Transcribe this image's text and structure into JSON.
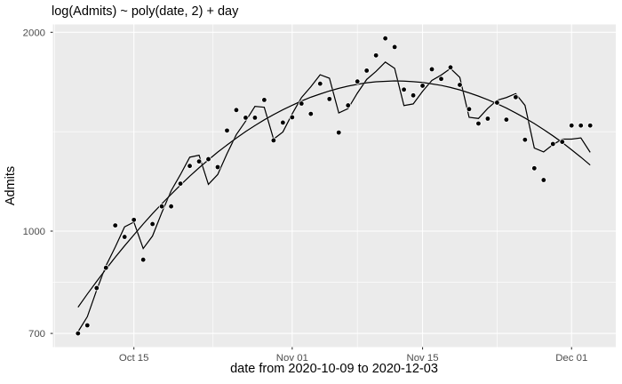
{
  "chart": {
    "title": "log(Admits) ~ poly(date, 2) + day",
    "xlabel": "date from 2020-10-09 to 2020-12-03",
    "ylabel": "Admits"
  },
  "chart_data": {
    "type": "scatter",
    "title": "log(Admits) ~ poly(date, 2) + day",
    "xlabel": "date from 2020-10-09 to 2020-12-03",
    "ylabel": "Admits",
    "x_dates": [
      "2020-10-09",
      "2020-10-10",
      "2020-10-11",
      "2020-10-12",
      "2020-10-13",
      "2020-10-14",
      "2020-10-15",
      "2020-10-16",
      "2020-10-17",
      "2020-10-18",
      "2020-10-19",
      "2020-10-20",
      "2020-10-21",
      "2020-10-22",
      "2020-10-23",
      "2020-10-24",
      "2020-10-25",
      "2020-10-26",
      "2020-10-27",
      "2020-10-28",
      "2020-10-29",
      "2020-10-30",
      "2020-10-31",
      "2020-11-01",
      "2020-11-02",
      "2020-11-03",
      "2020-11-04",
      "2020-11-05",
      "2020-11-06",
      "2020-11-07",
      "2020-11-08",
      "2020-11-09",
      "2020-11-10",
      "2020-11-11",
      "2020-11-12",
      "2020-11-13",
      "2020-11-14",
      "2020-11-15",
      "2020-11-16",
      "2020-11-17",
      "2020-11-18",
      "2020-11-19",
      "2020-11-20",
      "2020-11-21",
      "2020-11-22",
      "2020-11-23",
      "2020-11-24",
      "2020-11-25",
      "2020-11-26",
      "2020-11-27",
      "2020-11-28",
      "2020-11-29",
      "2020-11-30",
      "2020-12-01",
      "2020-12-02",
      "2020-12-03"
    ],
    "series": [
      {
        "name": "observed-admits",
        "geom": "point",
        "values": [
          700,
          720,
          820,
          880,
          1020,
          980,
          1040,
          905,
          1025,
          1090,
          1090,
          1180,
          1255,
          1275,
          1285,
          1250,
          1420,
          1525,
          1485,
          1485,
          1580,
          1372,
          1460,
          1487,
          1560,
          1505,
          1672,
          1585,
          1410,
          1550,
          1685,
          1750,
          1845,
          1958,
          1900,
          1638,
          1605,
          1660,
          1758,
          1700,
          1770,
          1665,
          1530,
          1455,
          1480,
          1565,
          1475,
          1595,
          1375,
          1245,
          1195,
          1355,
          1365,
          1445,
          1445,
          1445
        ]
      },
      {
        "name": "model-fit-poly-date-2-plus-day",
        "geom": "line",
        "values": [
          704,
          742,
          814,
          886,
          946,
          1015,
          1032,
          941,
          983,
          1067,
          1151,
          1218,
          1294,
          1303,
          1177,
          1218,
          1310,
          1400,
          1467,
          1545,
          1540,
          1378,
          1413,
          1505,
          1593,
          1654,
          1725,
          1704,
          1510,
          1533,
          1618,
          1697,
          1745,
          1803,
          1764,
          1549,
          1558,
          1628,
          1691,
          1723,
          1763,
          1709,
          1487,
          1481,
          1534,
          1578,
          1593,
          1615,
          1550,
          1336,
          1318,
          1352,
          1378,
          1378,
          1384,
          1316
        ]
      },
      {
        "name": "quadratic-trend",
        "geom": "line",
        "values": [
          767,
          803,
          839,
          876,
          913,
          950,
          987,
          1025,
          1063,
          1100,
          1137,
          1174,
          1211,
          1247,
          1282,
          1317,
          1350,
          1383,
          1415,
          1445,
          1474,
          1501,
          1527,
          1551,
          1574,
          1595,
          1613,
          1630,
          1645,
          1658,
          1668,
          1677,
          1683,
          1686,
          1688,
          1687,
          1684,
          1679,
          1671,
          1662,
          1650,
          1636,
          1619,
          1601,
          1581,
          1559,
          1536,
          1510,
          1483,
          1455,
          1425,
          1394,
          1362,
          1328,
          1294,
          1259
        ]
      }
    ],
    "y_scale": "log10",
    "ylim": [
      668,
      2058
    ],
    "y_ticks": [
      {
        "value": 2000,
        "label": "2000"
      },
      {
        "value": 1000,
        "label": "1000"
      },
      {
        "value": 700,
        "label": "700"
      }
    ],
    "y_minor_breaks": [
      836.66,
      1414.21
    ],
    "x_ticks": [
      {
        "date": "2020-10-15",
        "label": "Oct 15"
      },
      {
        "date": "2020-11-01",
        "label": "Nov 01"
      },
      {
        "date": "2020-11-15",
        "label": "Nov 15"
      },
      {
        "date": "2020-12-01",
        "label": "Dec 01"
      }
    ],
    "x_minor_day_offsets": [
      -2.5,
      14.5,
      30,
      45
    ],
    "x_domain": [
      "2020-10-09",
      "2020-12-03"
    ],
    "grid": "major+minor",
    "legend_position": "none",
    "colors": {
      "plot_background": "#FFFFFF",
      "panel_background": "#EBEBEB",
      "gridline": "#FFFFFF",
      "point": "#000000",
      "line": "#000000",
      "axis_text": "#4D4D4D",
      "axis_tick": "#333333",
      "title_text": "#000000"
    }
  }
}
